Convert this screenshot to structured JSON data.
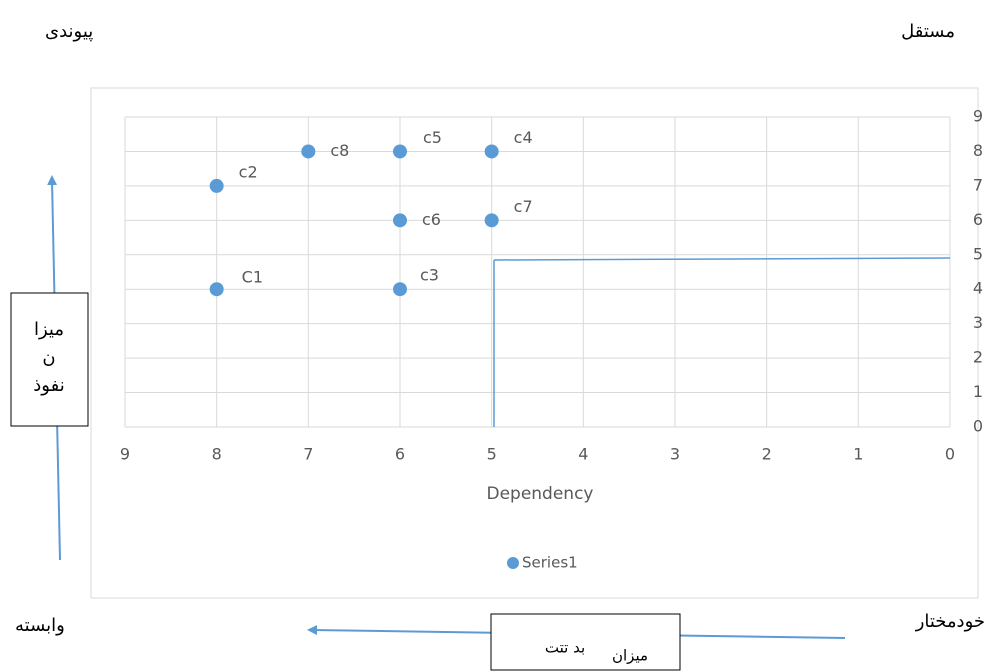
{
  "annotations": {
    "top_right": "مستقل",
    "top_left": "پیوندی",
    "bottom_left": "وابسته",
    "bottom_right": "خودمختار",
    "left_box": [
      "میزا",
      "ن",
      "نفوذ"
    ],
    "bottom_box": [
      "میزان",
      "بد تتت"
    ]
  },
  "chart_data": {
    "type": "scatter",
    "x_title": "Dependency",
    "series": [
      {
        "name": "Series1",
        "color": "#5b9bd5",
        "x": [
          8,
          8,
          7,
          6,
          5,
          6,
          5,
          6
        ],
        "values": [
          4,
          7,
          8,
          8,
          8,
          6,
          6,
          4
        ],
        "point_labels": [
          "C1",
          "c2",
          "c8",
          "c5",
          "c4",
          "c6",
          "c7",
          "c3"
        ]
      }
    ],
    "xlim": [
      0,
      9
    ],
    "xticks": [
      0,
      1,
      2,
      3,
      4,
      5,
      6,
      7,
      8,
      9
    ],
    "x_axis_reversed": true,
    "ylim": [
      0,
      9
    ],
    "yticks": [
      0,
      1,
      2,
      3,
      4,
      5,
      6,
      7,
      8,
      9
    ],
    "y_axis_position": "right",
    "grid": true,
    "legend": "bottom"
  }
}
